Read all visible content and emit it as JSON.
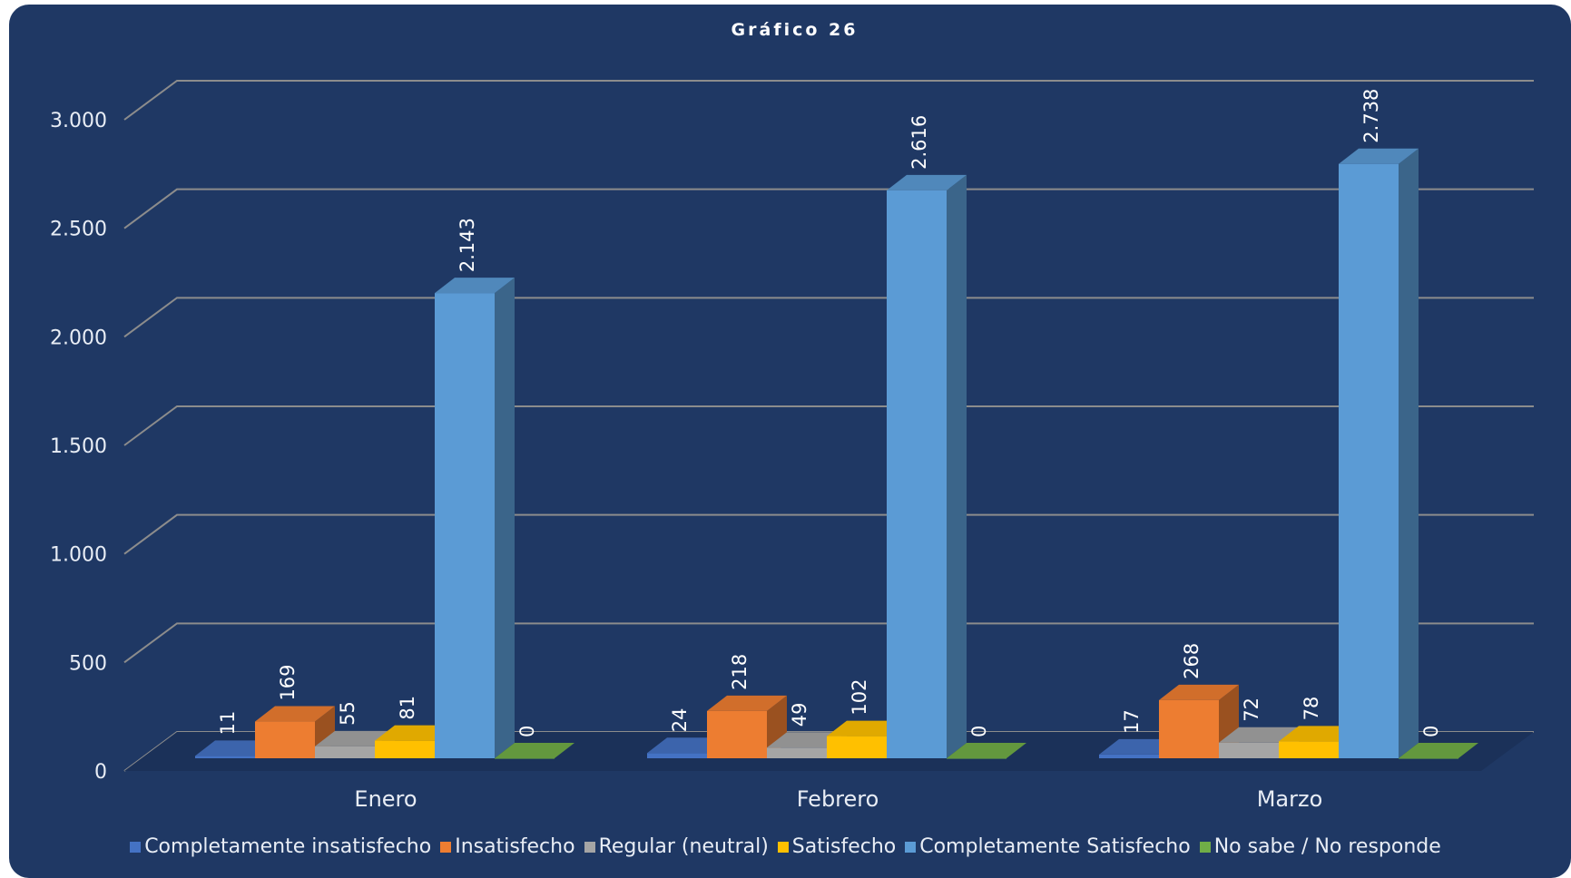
{
  "chart_data": {
    "type": "bar",
    "title": "Gráfico 26",
    "categories": [
      "Enero",
      "Febrero",
      "Marzo"
    ],
    "series": [
      {
        "name": "Completamente insatisfecho",
        "color": "#4472c4",
        "values": [
          11,
          24,
          17
        ],
        "labels": [
          "11",
          "24",
          "17"
        ]
      },
      {
        "name": "Insatisfecho",
        "color": "#ed7d31",
        "values": [
          169,
          218,
          268
        ],
        "labels": [
          "169",
          "218",
          "268"
        ]
      },
      {
        "name": "Regular (neutral)",
        "color": "#a5a5a5",
        "values": [
          55,
          49,
          72
        ],
        "labels": [
          "55",
          "49",
          "72"
        ]
      },
      {
        "name": "Satisfecho",
        "color": "#ffc000",
        "values": [
          81,
          102,
          78
        ],
        "labels": [
          "81",
          "102",
          "78"
        ]
      },
      {
        "name": "Completamente Satisfecho",
        "color": "#5b9bd5",
        "values": [
          2143,
          2616,
          2738
        ],
        "labels": [
          "2.143",
          "2.616",
          "2.738"
        ]
      },
      {
        "name": "No sabe / No responde",
        "color": "#70ad47",
        "values": [
          0,
          0,
          0
        ],
        "labels": [
          "0",
          "0",
          "0"
        ]
      }
    ],
    "ylim": [
      0,
      3000
    ],
    "yticks": [
      0,
      500,
      1000,
      1500,
      2000,
      2500,
      3000
    ],
    "ytick_labels": [
      "0",
      "500",
      "1.000",
      "1.500",
      "2.000",
      "2.500",
      "3.000"
    ],
    "grid": true,
    "legend_position": "bottom",
    "style": "3d-column"
  }
}
